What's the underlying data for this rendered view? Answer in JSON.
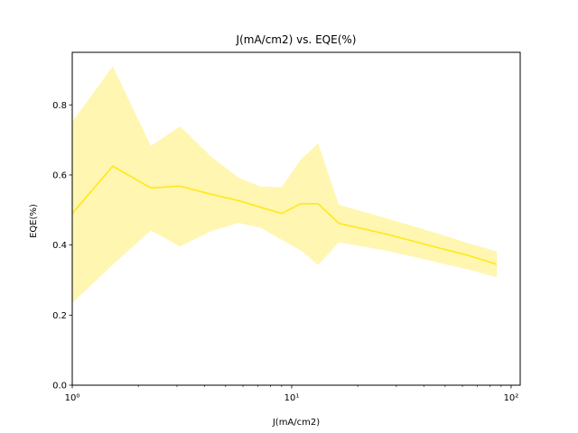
{
  "chart_data": {
    "type": "line",
    "title": "J(mA/cm2) vs. EQE(%)",
    "xlabel": "J(mA/cm2)",
    "ylabel": "EQE(%)",
    "xscale": "log",
    "xlim": [
      1.0,
      110
    ],
    "ylim": [
      0.0,
      0.95
    ],
    "grid": false,
    "legend": "none",
    "x_major_ticks": [
      1,
      10,
      100
    ],
    "x_tick_labels": [
      "10⁰",
      "10¹",
      "10²"
    ],
    "y_ticks": [
      0.0,
      0.2,
      0.4,
      0.6,
      0.8
    ],
    "y_tick_labels": [
      "0.0",
      "0.2",
      "0.4",
      "0.6",
      "0.8"
    ],
    "colors": {
      "line": "#ffe817",
      "band": "#fff5a8"
    },
    "series": [
      {
        "x": [
          1.0,
          1.53,
          2.28,
          3.1,
          4.3,
          5.7,
          7.2,
          9.0,
          11.0,
          13.2,
          16.4,
          27.5,
          48.0,
          64.0,
          86.0
        ],
        "y": [
          0.49,
          0.625,
          0.563,
          0.568,
          0.545,
          0.527,
          0.508,
          0.49,
          0.518,
          0.518,
          0.462,
          0.43,
          0.39,
          0.37,
          0.345
        ],
        "y_upper": [
          0.752,
          0.91,
          0.683,
          0.739,
          0.652,
          0.593,
          0.567,
          0.565,
          0.644,
          0.69,
          0.515,
          0.475,
          0.43,
          0.405,
          0.382
        ],
        "y_lower": [
          0.235,
          0.344,
          0.442,
          0.396,
          0.44,
          0.463,
          0.45,
          0.415,
          0.385,
          0.343,
          0.408,
          0.383,
          0.348,
          0.33,
          0.308
        ]
      }
    ]
  }
}
